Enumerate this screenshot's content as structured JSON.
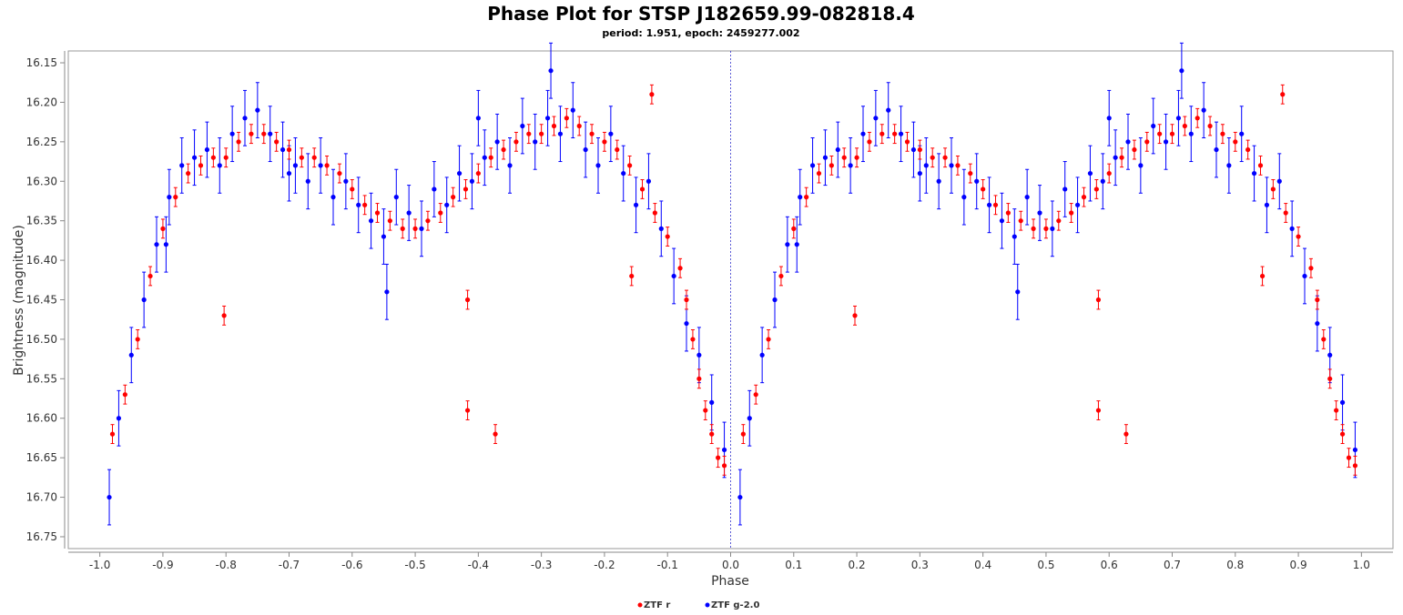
{
  "chart_data": {
    "type": "scatter",
    "title": "Phase Plot for STSP J182659.99-082818.4",
    "subtitle": "period: 1.951, epoch: 2459277.002",
    "xlabel": "Phase",
    "ylabel": "Brightness (magnitude)",
    "xlim": [
      -1.05,
      1.05
    ],
    "ylim": [
      16.765,
      16.135
    ],
    "y_inverted": true,
    "x_ticks": [
      "-1.0",
      "-0.9",
      "-0.8",
      "-0.7",
      "-0.6",
      "-0.5",
      "-0.4",
      "-0.3",
      "-0.2",
      "-0.1",
      "0.0",
      "0.1",
      "0.2",
      "0.3",
      "0.4",
      "0.5",
      "0.6",
      "0.7",
      "0.8",
      "0.9",
      "1.0"
    ],
    "y_ticks": [
      "16.15",
      "16.20",
      "16.25",
      "16.30",
      "16.35",
      "16.40",
      "16.45",
      "16.50",
      "16.55",
      "16.60",
      "16.65",
      "16.70",
      "16.75"
    ],
    "grid": false,
    "reference_line_x": 0.0,
    "legend_position": "bottom-center",
    "colors": {
      "r": "#ff0000",
      "g": "#0000ff",
      "ref_line": "#3333cc"
    },
    "series": [
      {
        "name": "ZTF r",
        "color": "#ff0000",
        "x": [
          0.02,
          0.04,
          0.06,
          0.08,
          0.1,
          0.12,
          0.14,
          0.16,
          0.18,
          0.2,
          0.22,
          0.24,
          0.26,
          0.28,
          0.3,
          0.32,
          0.34,
          0.36,
          0.38,
          0.4,
          0.42,
          0.44,
          0.46,
          0.48,
          0.5,
          0.52,
          0.54,
          0.56,
          0.58,
          0.6,
          0.62,
          0.64,
          0.66,
          0.68,
          0.7,
          0.72,
          0.74,
          0.76,
          0.78,
          0.8,
          0.82,
          0.84,
          0.86,
          0.88,
          0.9,
          0.92,
          0.93,
          0.94,
          0.95,
          0.96,
          0.97,
          0.98,
          0.99,
          0.197,
          0.583,
          0.583,
          0.627,
          0.843,
          0.875
        ],
        "y": [
          16.62,
          16.57,
          16.5,
          16.42,
          16.36,
          16.32,
          16.29,
          16.28,
          16.27,
          16.27,
          16.25,
          16.24,
          16.24,
          16.25,
          16.26,
          16.27,
          16.27,
          16.28,
          16.29,
          16.31,
          16.33,
          16.34,
          16.35,
          16.36,
          16.36,
          16.35,
          16.34,
          16.32,
          16.31,
          16.29,
          16.27,
          16.26,
          16.25,
          16.24,
          16.24,
          16.23,
          16.22,
          16.23,
          16.24,
          16.25,
          16.26,
          16.28,
          16.31,
          16.34,
          16.37,
          16.41,
          16.45,
          16.5,
          16.55,
          16.59,
          16.62,
          16.65,
          16.66,
          16.47,
          16.45,
          16.59,
          16.62,
          16.42,
          16.19
        ],
        "error": 0.012
      },
      {
        "name": "ZTF g-2.0",
        "color": "#0000ff",
        "x": [
          0.03,
          0.05,
          0.07,
          0.09,
          0.11,
          0.13,
          0.15,
          0.17,
          0.19,
          0.21,
          0.23,
          0.25,
          0.27,
          0.29,
          0.31,
          0.33,
          0.35,
          0.37,
          0.39,
          0.41,
          0.43,
          0.45,
          0.47,
          0.49,
          0.51,
          0.53,
          0.55,
          0.57,
          0.59,
          0.61,
          0.63,
          0.65,
          0.67,
          0.69,
          0.71,
          0.73,
          0.75,
          0.77,
          0.79,
          0.81,
          0.83,
          0.85,
          0.87,
          0.89,
          0.91,
          0.93,
          0.95,
          0.97,
          0.99,
          0.015,
          0.105,
          0.3,
          0.455,
          0.715,
          0.6
        ],
        "y": [
          16.6,
          16.52,
          16.45,
          16.38,
          16.32,
          16.28,
          16.27,
          16.26,
          16.28,
          16.24,
          16.22,
          16.21,
          16.24,
          16.26,
          16.28,
          16.3,
          16.28,
          16.32,
          16.3,
          16.33,
          16.35,
          16.37,
          16.32,
          16.34,
          16.36,
          16.31,
          16.33,
          16.29,
          16.3,
          16.27,
          16.25,
          16.28,
          16.23,
          16.25,
          16.22,
          16.24,
          16.21,
          16.26,
          16.28,
          16.24,
          16.29,
          16.33,
          16.3,
          16.36,
          16.42,
          16.48,
          16.52,
          16.58,
          16.64,
          16.7,
          16.38,
          16.29,
          16.44,
          16.16,
          16.22
        ],
        "error": 0.035
      }
    ]
  },
  "legend": {
    "items": [
      {
        "label": "ZTF r",
        "color": "#ff0000"
      },
      {
        "label": "ZTF g-2.0",
        "color": "#0000ff"
      }
    ]
  }
}
